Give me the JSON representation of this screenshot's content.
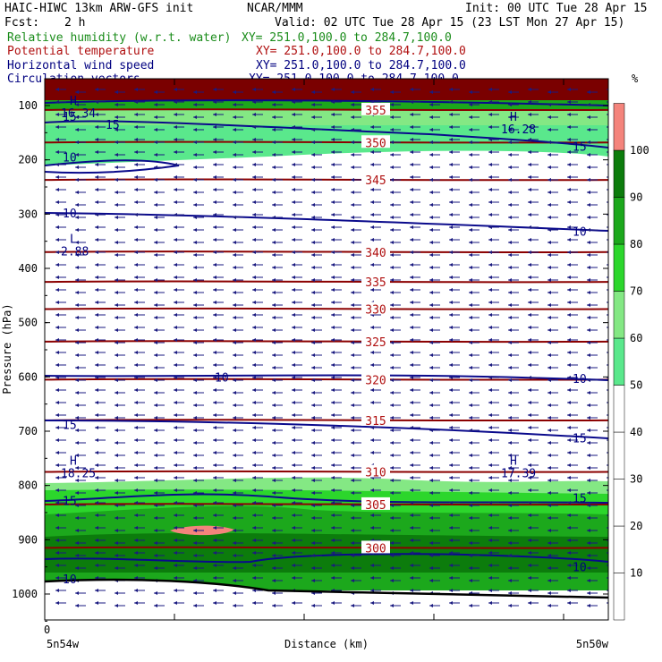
{
  "header": {
    "title_left": "HAIC-HIWC 13km ARW-GFS init",
    "title_center": "NCAR/MMM",
    "init": "Init: 00 UTC Tue 28 Apr 15",
    "fcst_label": "Fcst:",
    "fcst_value": "2 h",
    "valid": "Valid: 02 UTC Tue 28 Apr 15 (23 LST Mon 27 Apr 15)"
  },
  "fields": [
    {
      "name": "Relative humidity (w.r.t. water)",
      "xy": "XY= 251.0,100.0 to 284.7,100.0",
      "color": "#1a8c1a"
    },
    {
      "name": "Potential temperature",
      "xy": "XY= 251.0,100.0 to 284.7,100.0",
      "color": "#b01010"
    },
    {
      "name": "Horizontal wind speed",
      "xy": "XY= 251.0,100.0 to 284.7,100.0",
      "color": "#000080"
    },
    {
      "name": "Circulation vectors",
      "xy": "XY= 251.0,100.0 to 284.7,100.0",
      "color": "#000080"
    }
  ],
  "colors": {
    "rh_fill": [
      "#ffffff",
      "#ffffff",
      "#ffffff",
      "#ffffff",
      "#ffffff",
      "#5ae88c",
      "#84e884",
      "#2cd62c",
      "#1ca81c",
      "#0c7c0c",
      "#f4847c"
    ],
    "theta_line": "#8b0000",
    "wind_line": "#0a0a8c",
    "vector": "#1a1a80",
    "text_red": "#b01010",
    "text_green": "#1a8c1a",
    "text_navy": "#000080"
  },
  "chart_data": {
    "type": "cross-section",
    "ylabel": "Pressure (hPa)",
    "xlabel": "Distance (km)",
    "x_left_label": "5n54w",
    "x_right_label": "5n50w",
    "x_ticks": [
      "0"
    ],
    "y_ticks": [
      100,
      200,
      300,
      400,
      500,
      600,
      700,
      800,
      900,
      1000
    ],
    "ylim": [
      1050,
      60
    ],
    "colorbar": {
      "unit": "%",
      "levels": [
        10,
        20,
        30,
        40,
        50,
        60,
        70,
        80,
        90,
        100
      ]
    },
    "theta_contours": [
      {
        "value": 355,
        "p": 108
      },
      {
        "value": 350,
        "p": 168
      },
      {
        "value": 345,
        "p": 237
      },
      {
        "value": 340,
        "p": 370
      },
      {
        "value": 335,
        "p": 425
      },
      {
        "value": 330,
        "p": 475
      },
      {
        "value": 325,
        "p": 535
      },
      {
        "value": 320,
        "p": 605
      },
      {
        "value": 315,
        "p": 680
      },
      {
        "value": 310,
        "p": 775
      },
      {
        "value": 305,
        "p": 835
      },
      {
        "value": 300,
        "p": 915
      }
    ],
    "wind_contour_labels": [
      {
        "value": "15",
        "p": 120,
        "pos": "left"
      },
      {
        "value": "15",
        "p": 135,
        "pos": "left2"
      },
      {
        "value": "10",
        "p": 195,
        "pos": "left"
      },
      {
        "value": "15",
        "p": 175,
        "pos": "right"
      },
      {
        "value": "10",
        "p": 298,
        "pos": "left"
      },
      {
        "value": "10",
        "p": 332,
        "pos": "right"
      },
      {
        "value": "10",
        "p": 600,
        "pos": "mid"
      },
      {
        "value": "10",
        "p": 603,
        "pos": "right"
      },
      {
        "value": "15",
        "p": 688,
        "pos": "left"
      },
      {
        "value": "15",
        "p": 712,
        "pos": "right"
      },
      {
        "value": "15",
        "p": 828,
        "pos": "left"
      },
      {
        "value": "15",
        "p": 823,
        "pos": "right"
      },
      {
        "value": "10",
        "p": 950,
        "pos": "right"
      },
      {
        "value": "10",
        "p": 972,
        "pos": "left"
      }
    ],
    "extrema": [
      {
        "type": "H",
        "value": "16.34",
        "p": 105,
        "pos": "left"
      },
      {
        "type": "H",
        "value": "16.28",
        "p": 135,
        "pos": "right"
      },
      {
        "type": "L",
        "value": "2.88",
        "p": 360,
        "pos": "left"
      },
      {
        "type": "H",
        "value": "18.25",
        "p": 768,
        "pos": "left"
      },
      {
        "type": "H",
        "value": "17.39",
        "p": 768,
        "pos": "right"
      }
    ]
  }
}
